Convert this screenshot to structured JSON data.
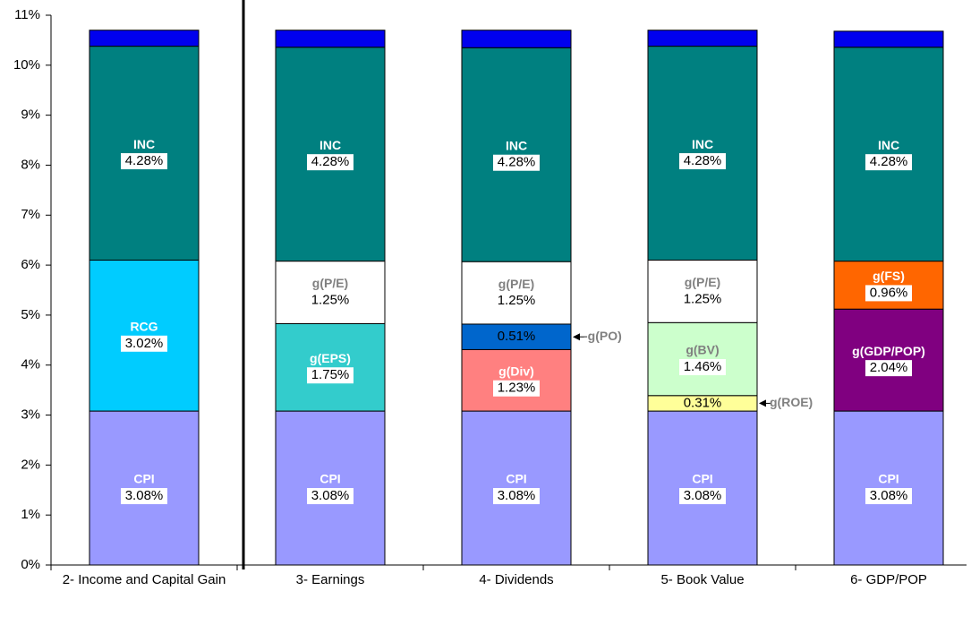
{
  "chart_data": {
    "type": "stacked-bar",
    "categories": [
      "2- Income and Capital Gain",
      "3- Earnings",
      "4- Dividends",
      "5- Book Value",
      "6- GDP/POP"
    ],
    "ylim": [
      0,
      11
    ],
    "yticks": [
      {
        "value": 0,
        "label": "0%"
      },
      {
        "value": 1,
        "label": "1%"
      },
      {
        "value": 2,
        "label": "2%"
      },
      {
        "value": 3,
        "label": "3%"
      },
      {
        "value": 4,
        "label": "4%"
      },
      {
        "value": 5,
        "label": "5%"
      },
      {
        "value": 6,
        "label": "6%"
      },
      {
        "value": 7,
        "label": "7%"
      },
      {
        "value": 8,
        "label": "8%"
      },
      {
        "value": 9,
        "label": "9%"
      },
      {
        "value": 10,
        "label": "10%"
      },
      {
        "value": 11,
        "label": "11%"
      }
    ],
    "series": [
      {
        "name": "CPI",
        "color": "#9999ff",
        "label_color": "#ffffff",
        "values": [
          3.08,
          3.08,
          3.08,
          3.08,
          3.08
        ],
        "value_labels": [
          "3.08%",
          "3.08%",
          "3.08%",
          "3.08%",
          "3.08%"
        ]
      },
      {
        "name": "RCG",
        "color": "#00ccff",
        "label_color": "#ffffff",
        "values": [
          3.02,
          null,
          null,
          null,
          null
        ],
        "value_labels": [
          "3.02%",
          null,
          null,
          null,
          null
        ]
      },
      {
        "name": "g(EPS)",
        "color": "#33cccc",
        "label_color": "#ffffff",
        "values": [
          null,
          1.75,
          null,
          null,
          null
        ],
        "value_labels": [
          null,
          "1.75%",
          null,
          null,
          null
        ]
      },
      {
        "name": "g(Div)",
        "color": "#ff8080",
        "label_color": "#ffffff",
        "values": [
          null,
          null,
          1.23,
          null,
          null
        ],
        "value_labels": [
          null,
          null,
          "1.23%",
          null,
          null
        ]
      },
      {
        "name": "g(ROE)",
        "color": "#ffff99",
        "label_color": "#808080",
        "values": [
          null,
          null,
          null,
          0.31,
          null
        ],
        "value_labels": [
          null,
          null,
          null,
          "0.31%",
          null
        ]
      },
      {
        "name": "g(GDP/POP)",
        "color": "#800080",
        "label_color": "#ffffff",
        "values": [
          null,
          null,
          null,
          null,
          2.04
        ],
        "value_labels": [
          null,
          null,
          null,
          null,
          "2.04%"
        ]
      },
      {
        "name": "-g(PO)",
        "color": "#0066cc",
        "label_color": "#808080",
        "values": [
          null,
          null,
          0.51,
          null,
          null
        ],
        "value_labels": [
          null,
          null,
          "0.51%",
          null,
          null
        ]
      },
      {
        "name": "g(BV)",
        "color": "#ccffcc",
        "label_color": "#808080",
        "values": [
          null,
          null,
          null,
          1.46,
          null
        ],
        "value_labels": [
          null,
          null,
          null,
          "1.46%",
          null
        ]
      },
      {
        "name": "g(FS)",
        "color": "#ff6600",
        "label_color": "#ffffff",
        "values": [
          null,
          null,
          null,
          null,
          0.96
        ],
        "value_labels": [
          null,
          null,
          null,
          null,
          "0.96%"
        ]
      },
      {
        "name": "g(P/E)",
        "color": "#ffffff",
        "label_color": "#808080",
        "values": [
          null,
          1.25,
          1.25,
          1.25,
          null
        ],
        "value_labels": [
          null,
          "1.25%",
          "1.25%",
          "1.25%",
          null
        ]
      },
      {
        "name": "INC",
        "color": "#008080",
        "label_color": "#ffffff",
        "values": [
          4.28,
          4.28,
          4.28,
          4.28,
          4.28
        ],
        "value_labels": [
          "4.28%",
          "4.28%",
          "4.28%",
          "4.28%",
          "4.28%"
        ]
      },
      {
        "color": "#0000ee",
        "values": [
          0.32,
          0.34,
          0.35,
          0.32,
          0.32
        ]
      }
    ]
  }
}
